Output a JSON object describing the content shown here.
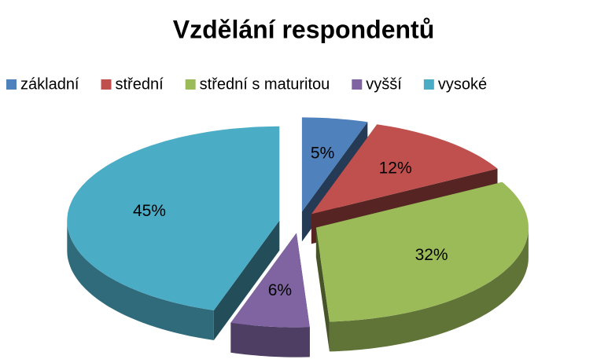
{
  "chart_data": {
    "type": "pie",
    "title": "Vzdělání respondentů",
    "categories": [
      "základní",
      "střední",
      "střední s maturitou",
      "vyšší",
      "vysoké"
    ],
    "values": [
      5,
      12,
      32,
      6,
      45
    ],
    "value_labels": [
      "5%",
      "12%",
      "32%",
      "6%",
      "45%"
    ],
    "colors": [
      "#4f81bd",
      "#c0504d",
      "#9bbb59",
      "#8064a2",
      "#4bacc6"
    ],
    "legend": "top"
  }
}
